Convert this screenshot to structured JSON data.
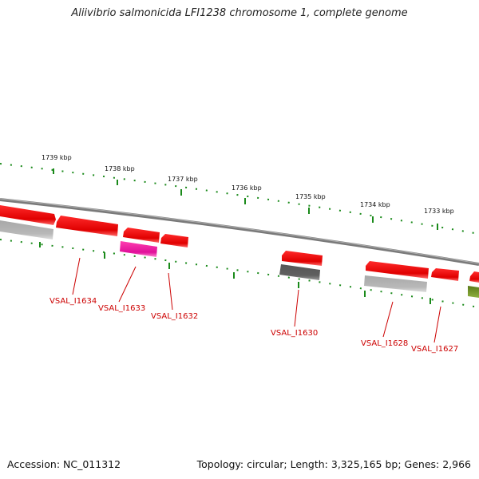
{
  "title": "Aliivibrio salmonicida LFI1238 chromosome 1, complete genome",
  "footer": {
    "accession": "Accession: NC_011312",
    "summary": "Topology: circular; Length: 3,325,165 bp; Genes: 2,966"
  },
  "ruler": {
    "ticks": [
      "1739 kbp",
      "1738 kbp",
      "1737 kbp",
      "1736 kbp",
      "1735 kbp",
      "1734 kbp",
      "1733 kbp"
    ]
  },
  "colors": {
    "backbone": "#8a8a8a",
    "gene_red": "#ff0000",
    "gene_pink": "#ff2aa0",
    "gene_gray_light": "#b8b8b8",
    "gene_gray_dark": "#5a5a5a",
    "gene_olive": "#6a8a20",
    "tick_green": "#1a8a1a",
    "label_red": "#cc0000"
  },
  "gene_labels": [
    "VSAL_I1634",
    "VSAL_I1633",
    "VSAL_I1632",
    "VSAL_I1630",
    "VSAL_I1628",
    "VSAL_I1627"
  ]
}
